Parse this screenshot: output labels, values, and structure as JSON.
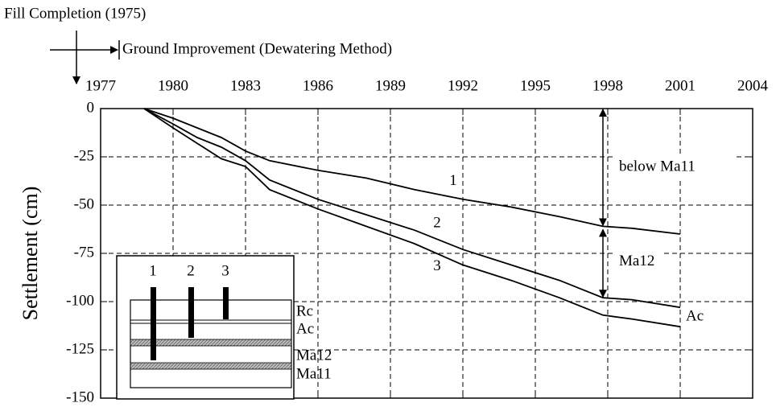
{
  "chart_data": {
    "type": "line",
    "ylabel": "Settlement (cm)",
    "annotations": [
      "Fill Completion (1975)",
      "Ground Improvement (Dewatering Method)",
      "below Ma11",
      "Ma12",
      "Ac"
    ],
    "x": [
      1978.8,
      1980,
      1981,
      1982,
      1983,
      1984,
      1986,
      1988,
      1990,
      1992,
      1994,
      1996,
      1997.8,
      1999,
      2001
    ],
    "series": [
      {
        "name": "1",
        "color": "#000000",
        "values": [
          0,
          -5,
          -10,
          -15,
          -22,
          -27,
          -32,
          -36,
          -42,
          -47,
          -51,
          -56,
          -61,
          -62,
          -65
        ]
      },
      {
        "name": "2",
        "color": "#000000",
        "values": [
          0,
          -8,
          -15,
          -20,
          -27,
          -37,
          -47,
          -55,
          -63,
          -73,
          -81,
          -89,
          -98,
          -99,
          -103
        ]
      },
      {
        "name": "3",
        "color": "#000000",
        "values": [
          0,
          -10,
          -18,
          -26,
          -30,
          -42,
          -52,
          -61,
          -70,
          -81,
          -89,
          -98,
          -107,
          -109,
          -113
        ]
      }
    ],
    "xlim": [
      1977,
      2004
    ],
    "xticks": [
      1977,
      1980,
      1983,
      1986,
      1989,
      1992,
      1995,
      1998,
      2001,
      2004
    ],
    "ylim": [
      -150,
      0
    ],
    "yticks": [
      -150,
      -125,
      -100,
      -75,
      -50,
      -25,
      0
    ],
    "grid": true,
    "inset": {
      "columns": [
        "1",
        "2",
        "3"
      ],
      "layers": [
        "Rc",
        "Ac",
        "Ma12",
        "Ma11"
      ]
    }
  }
}
